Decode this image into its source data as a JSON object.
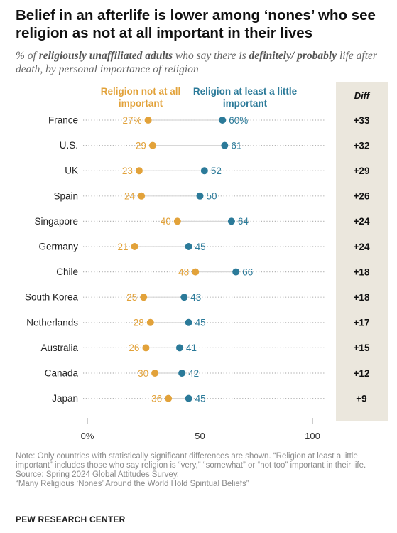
{
  "title": "Belief in an afterlife is lower among ‘nones’ who see religion as not at all important in their lives",
  "subtitle_parts": [
    "% of ",
    "religiously unaffiliated adults",
    " who say there is ",
    "definitely/ probably",
    " life after death, by personal importance of religion"
  ],
  "diff_header": "Diff",
  "notes": {
    "note": "Note: Only countries with statistically significant differences are shown. “Religion at least a little important” includes those who say religion is “very,” “somewhat” or “not too” important in their life.",
    "source": "Source: Spring 2024 Global Attitudes Survey.",
    "report": "“Many Religious ‘Nones’ Around the World Hold Spiritual Beliefs”"
  },
  "brand": "PEW RESEARCH CENTER",
  "colors": {
    "not_important": "#e2a23a",
    "little_important": "#2b7a99",
    "diff_bg": "#ebe7dd"
  },
  "chart_data": {
    "type": "dot",
    "xlim": [
      0,
      100
    ],
    "x_ticks": [
      "0%",
      "50",
      "100"
    ],
    "x_tick_values": [
      0,
      50,
      100
    ],
    "categories": [
      "France",
      "U.S.",
      "UK",
      "Spain",
      "Singapore",
      "Germany",
      "Chile",
      "South Korea",
      "Netherlands",
      "Australia",
      "Canada",
      "Japan"
    ],
    "series": [
      {
        "name": "Religion not at all important",
        "values": [
          27,
          29,
          23,
          24,
          40,
          21,
          48,
          25,
          28,
          26,
          30,
          36
        ],
        "labels": [
          "27%",
          "29",
          "23",
          "24",
          "40",
          "21",
          "48",
          "25",
          "28",
          "26",
          "30",
          "36"
        ]
      },
      {
        "name": "Religion at least a little important",
        "values": [
          60,
          61,
          52,
          50,
          64,
          45,
          66,
          43,
          45,
          41,
          42,
          45
        ],
        "labels": [
          "60%",
          "61",
          "52",
          "50",
          "64",
          "45",
          "66",
          "43",
          "45",
          "41",
          "42",
          "45"
        ]
      }
    ],
    "diff": [
      "+33",
      "+32",
      "+29",
      "+26",
      "+24",
      "+24",
      "+18",
      "+18",
      "+17",
      "+15",
      "+12",
      "+9"
    ],
    "legend": [
      "Religion not at all important",
      "Religion at least a little important"
    ]
  }
}
